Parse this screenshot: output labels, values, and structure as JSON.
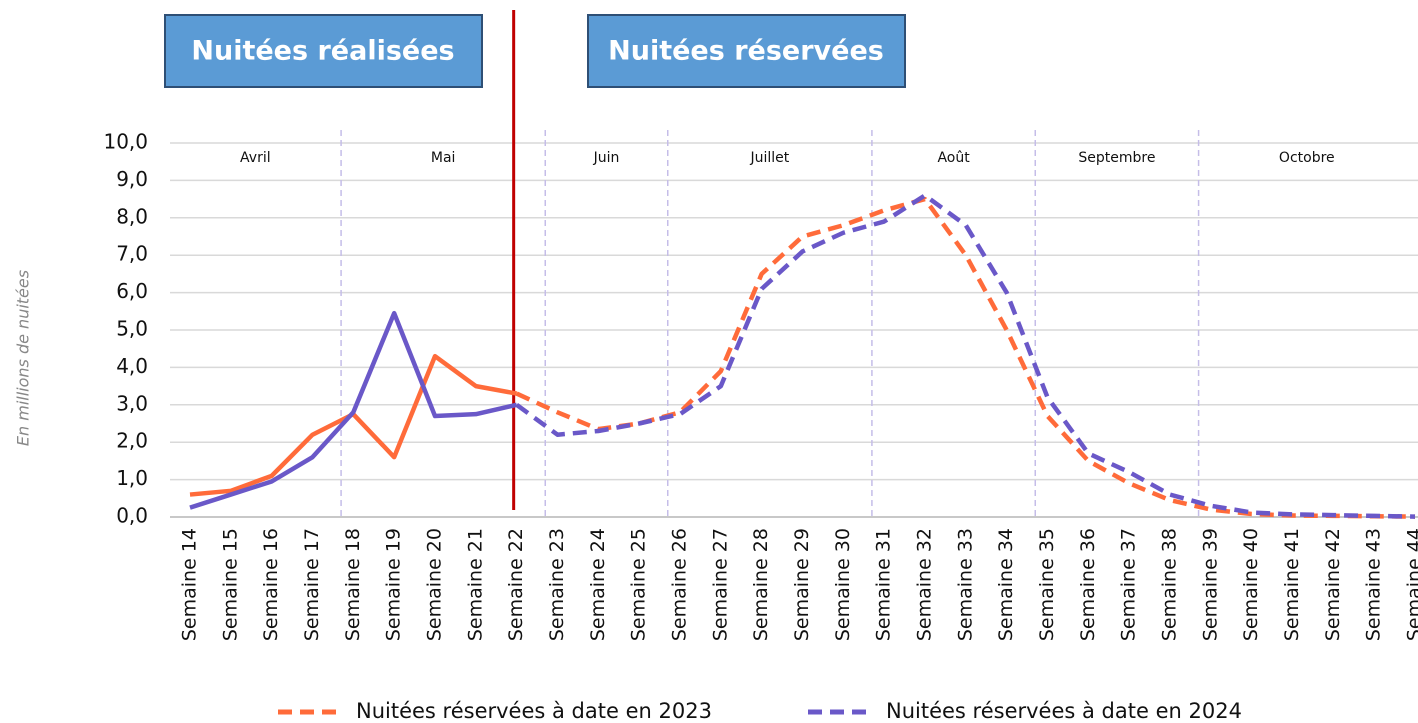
{
  "chart_data": {
    "type": "line",
    "annotations": [
      "Nuitées réalisées",
      "Nuitées réservées"
    ],
    "ylabel": "En millions de nuitées",
    "realized_until": "Semaine 22",
    "months": [
      {
        "label": "Avril",
        "start": "Semaine 14"
      },
      {
        "label": "Mai",
        "start": "Semaine 18"
      },
      {
        "label": "Juin",
        "start": "Semaine 23"
      },
      {
        "label": "Juillet",
        "start": "Semaine 26"
      },
      {
        "label": "Août",
        "start": "Semaine 31"
      },
      {
        "label": "Septembre",
        "start": "Semaine 35"
      },
      {
        "label": "Octobre",
        "start": "Semaine 39"
      }
    ],
    "categories": [
      "Semaine 14",
      "Semaine 15",
      "Semaine 16",
      "Semaine 17",
      "Semaine 18",
      "Semaine 19",
      "Semaine 20",
      "Semaine 21",
      "Semaine 22",
      "Semaine 23",
      "Semaine 24",
      "Semaine 25",
      "Semaine 26",
      "Semaine 27",
      "Semaine 28",
      "Semaine 29",
      "Semaine 30",
      "Semaine 31",
      "Semaine 32",
      "Semaine 33",
      "Semaine 34",
      "Semaine 35",
      "Semaine 36",
      "Semaine 37",
      "Semaine 38",
      "Semaine 39",
      "Semaine 40",
      "Semaine 41",
      "Semaine 42",
      "Semaine 43",
      "Semaine 44"
    ],
    "series": [
      {
        "name": "Nuitées réservées à date en 2023",
        "color": "#ff6b3a",
        "values": [
          0.6,
          0.7,
          1.1,
          2.2,
          2.75,
          1.6,
          4.3,
          3.5,
          3.3,
          2.8,
          2.35,
          2.5,
          2.8,
          3.9,
          6.5,
          7.5,
          7.8,
          8.2,
          8.5,
          7.0,
          5.0,
          2.7,
          1.5,
          0.9,
          0.45,
          0.2,
          0.08,
          0.04,
          0.03,
          0.02,
          0.01
        ]
      },
      {
        "name": "Nuitées réservées à date en 2024",
        "color": "#6a58c8",
        "values": [
          0.25,
          0.6,
          0.95,
          1.6,
          2.8,
          5.45,
          2.7,
          2.75,
          3.0,
          2.2,
          2.3,
          2.5,
          2.75,
          3.5,
          6.1,
          7.1,
          7.6,
          7.9,
          8.6,
          7.8,
          6.0,
          3.2,
          1.7,
          1.2,
          0.6,
          0.3,
          0.12,
          0.07,
          0.05,
          0.03,
          0.01
        ]
      }
    ],
    "ylim": [
      0,
      10
    ],
    "yticks": [
      {
        "value": 0,
        "label": "0,0"
      },
      {
        "value": 1,
        "label": "1,0"
      },
      {
        "value": 2,
        "label": "2,0"
      },
      {
        "value": 3,
        "label": "3,0"
      },
      {
        "value": 4,
        "label": "4,0"
      },
      {
        "value": 5,
        "label": "5,0"
      },
      {
        "value": 6,
        "label": "6,0"
      },
      {
        "value": 7,
        "label": "7,0"
      },
      {
        "value": 8,
        "label": "8,0"
      },
      {
        "value": 9,
        "label": "9,0"
      },
      {
        "value": 10,
        "label": "10,0"
      }
    ],
    "grid": true,
    "legend": "bottom"
  }
}
